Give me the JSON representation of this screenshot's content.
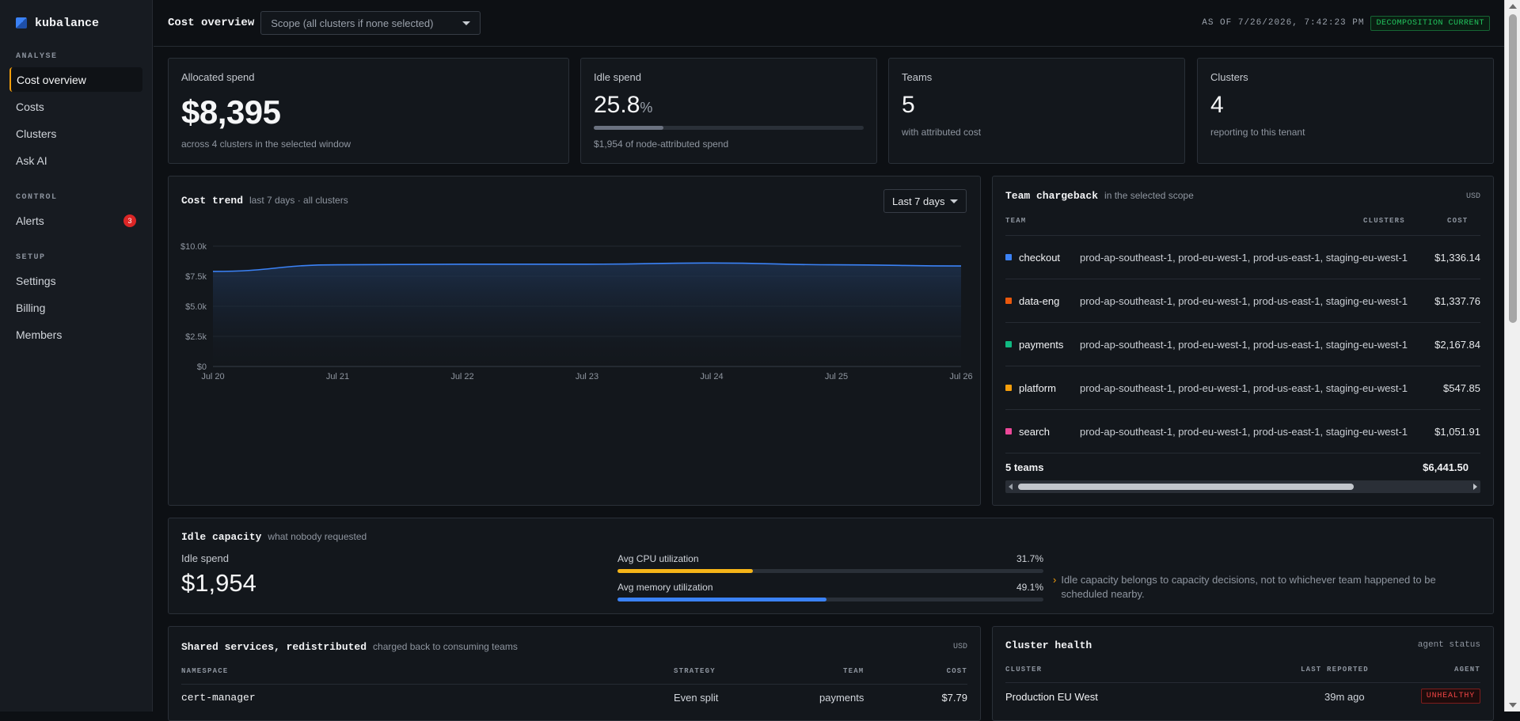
{
  "app": {
    "name": "kubalance"
  },
  "sidebar": {
    "sections": [
      {
        "heading": "ANALYSE",
        "items": [
          {
            "label": "Cost overview"
          },
          {
            "label": "Costs"
          },
          {
            "label": "Clusters"
          },
          {
            "label": "Ask AI"
          }
        ]
      },
      {
        "heading": "CONTROL",
        "items": [
          {
            "label": "Alerts",
            "badge": "3"
          }
        ]
      },
      {
        "heading": "SETUP",
        "items": [
          {
            "label": "Settings"
          },
          {
            "label": "Billing"
          },
          {
            "label": "Members"
          }
        ]
      }
    ]
  },
  "header": {
    "title": "Cost overview",
    "scope_placeholder": "Scope (all clusters if none selected)",
    "as_of": "AS OF 7/26/2026, 7:42:23 PM",
    "status": "DECOMPOSITION CURRENT"
  },
  "stats": {
    "allocated": {
      "label": "Allocated spend",
      "value": "$8,395",
      "sub": "across 4 clusters in the selected window"
    },
    "idle": {
      "label": "Idle spend",
      "value": "25.8",
      "unit": "%",
      "fraction": 0.258,
      "sub": "$1,954 of node-attributed spend"
    },
    "teams": {
      "label": "Teams",
      "value": "5",
      "sub": "with attributed cost"
    },
    "clusters": {
      "label": "Clusters",
      "value": "4",
      "sub": "reporting to this tenant"
    }
  },
  "cost_trend": {
    "title": "Cost trend",
    "subtitle": "last 7 days · all clusters",
    "range": "Last 7 days",
    "accent": "#3b82f6"
  },
  "chart_data": {
    "type": "area",
    "x": [
      "Jul 20",
      "Jul 21",
      "Jul 22",
      "Jul 23",
      "Jul 24",
      "Jul 25",
      "Jul 26"
    ],
    "values": [
      7900,
      8450,
      8500,
      8500,
      8600,
      8450,
      8350
    ],
    "yticks": [
      "$0",
      "$2.5k",
      "$5.0k",
      "$7.5k",
      "$10.0k"
    ],
    "ylim": [
      0,
      10000
    ],
    "grid": true
  },
  "chargeback": {
    "title": "Team chargeback",
    "subtitle": "in the selected scope",
    "currency": "USD",
    "columns": {
      "team": "TEAM",
      "clusters": "CLUSTERS",
      "cost": "COST"
    },
    "rows": [
      {
        "team": "checkout",
        "color": "#3b82f6",
        "clusters": "prod-ap-southeast-1, prod-eu-west-1, prod-us-east-1, staging-eu-west-1",
        "cost": "$1,336.14"
      },
      {
        "team": "data-eng",
        "color": "#ea580c",
        "clusters": "prod-ap-southeast-1, prod-eu-west-1, prod-us-east-1, staging-eu-west-1",
        "cost": "$1,337.76"
      },
      {
        "team": "payments",
        "color": "#10b981",
        "clusters": "prod-ap-southeast-1, prod-eu-west-1, prod-us-east-1, staging-eu-west-1",
        "cost": "$2,167.84"
      },
      {
        "team": "platform",
        "color": "#f59e0b",
        "clusters": "prod-ap-southeast-1, prod-eu-west-1, prod-us-east-1, staging-eu-west-1",
        "cost": "$547.85"
      },
      {
        "team": "search",
        "color": "#ec4899",
        "clusters": "prod-ap-southeast-1, prod-eu-west-1, prod-us-east-1, staging-eu-west-1",
        "cost": "$1,051.91"
      }
    ],
    "total_label": "5 teams",
    "total_value": "$6,441.50"
  },
  "idle_capacity": {
    "title": "Idle capacity",
    "subtitle": "what nobody requested",
    "spend_label": "Idle spend",
    "spend_value": "$1,954",
    "cpu": {
      "label": "Avg CPU utilization",
      "value": "31.7%",
      "fraction": 0.317,
      "color": "#f5b418"
    },
    "memory": {
      "label": "Avg memory utilization",
      "value": "49.1%",
      "fraction": 0.491,
      "color": "#3b82f6"
    },
    "note_marker": "›",
    "note": "Idle capacity belongs to capacity decisions, not to whichever team happened to be scheduled nearby."
  },
  "shared_services": {
    "title": "Shared services, redistributed",
    "subtitle": "charged back to consuming teams",
    "currency": "USD",
    "columns": {
      "namespace": "NAMESPACE",
      "strategy": "STRATEGY",
      "team": "TEAM",
      "cost": "COST"
    },
    "rows": [
      {
        "namespace": "cert-manager",
        "strategy": "Even split",
        "team": "payments",
        "cost": "$7.79"
      }
    ]
  },
  "cluster_health": {
    "title": "Cluster health",
    "subtitle": "agent status",
    "columns": {
      "cluster": "CLUSTER",
      "last_reported": "LAST REPORTED",
      "agent": "AGENT"
    },
    "rows": [
      {
        "cluster": "Production EU West",
        "last_reported": "39m ago",
        "agent": "UNHEALTHY"
      }
    ]
  }
}
